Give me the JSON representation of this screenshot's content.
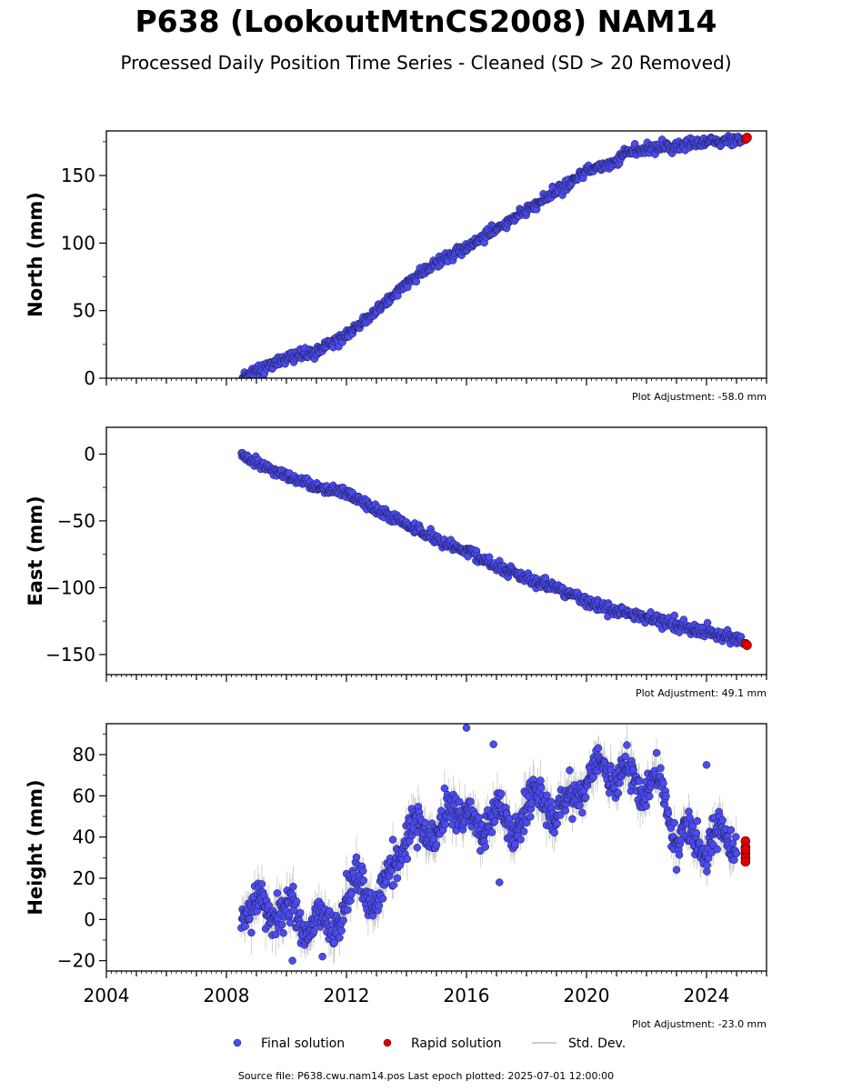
{
  "title": "P638 (LookoutMtnCS2008) NAM14",
  "subtitle": "Processed Daily Position Time Series - Cleaned (SD > 20 Removed)",
  "footer": "Source file: P638.cwu.nam14.pos  Last epoch plotted: 2025-07-01 12:00:00",
  "colors": {
    "final": "#4b4bf0",
    "rapid": "#e00000",
    "stddev": "#b0b0b0"
  },
  "chart_data": [
    {
      "type": "scatter",
      "ylabel": "North (mm)",
      "xlim": [
        2004,
        2026
      ],
      "ylim": [
        0,
        183
      ],
      "yticks": [
        0,
        50,
        100,
        150
      ],
      "ytick_labels": [
        "0",
        "50",
        "100",
        "150"
      ],
      "adjustment": "Plot Adjustment: -58.0 mm",
      "final": {
        "x": [
          2008.5,
          2009.0,
          2010.0,
          2011.0,
          2012.0,
          2013.0,
          2014.0,
          2015.0,
          2016.0,
          2017.0,
          2018.0,
          2019.0,
          2020.0,
          2021.0,
          2021.3,
          2022.0,
          2023.0,
          2024.0,
          2025.2
        ],
        "y": [
          0,
          6,
          14,
          20,
          32,
          50,
          70,
          85,
          97,
          111,
          124,
          138,
          153,
          160,
          167,
          170,
          172,
          175,
          177
        ]
      },
      "rapid": {
        "x": [
          2025.3,
          2025.35
        ],
        "y": [
          177,
          178
        ]
      }
    },
    {
      "type": "scatter",
      "ylabel": "East (mm)",
      "xlim": [
        2004,
        2026
      ],
      "ylim": [
        -165,
        20
      ],
      "yticks": [
        0,
        -50,
        -100,
        -150
      ],
      "ytick_labels": [
        "0",
        "−50",
        "−100",
        "−150"
      ],
      "adjustment": "Plot Adjustment: 49.1 mm",
      "final": {
        "x": [
          2008.5,
          2009.0,
          2010.0,
          2011.0,
          2012.0,
          2013.0,
          2014.0,
          2015.0,
          2016.0,
          2017.0,
          2018.0,
          2019.0,
          2020.0,
          2021.0,
          2022.0,
          2023.0,
          2024.0,
          2025.2
        ],
        "y": [
          0,
          -7,
          -16,
          -24,
          -30,
          -42,
          -53,
          -64,
          -73,
          -84,
          -93,
          -100,
          -110,
          -117,
          -122,
          -128,
          -133,
          -140
        ]
      },
      "rapid": {
        "x": [
          2025.3,
          2025.35
        ],
        "y": [
          -142,
          -143
        ]
      }
    },
    {
      "type": "scatter",
      "ylabel": "Height (mm)",
      "xlabel": "",
      "xlim": [
        2004,
        2026
      ],
      "ylim": [
        -25,
        95
      ],
      "yticks": [
        80,
        60,
        40,
        20,
        0,
        -20
      ],
      "ytick_labels": [
        "80",
        "60",
        "40",
        "20",
        "0",
        "−20"
      ],
      "xticks": [
        2004,
        2008,
        2012,
        2016,
        2020,
        2024
      ],
      "xtick_labels": [
        "2004",
        "2008",
        "2012",
        "2016",
        "2020",
        "2024"
      ],
      "adjustment": "Plot Adjustment: -23.0 mm",
      "final": {
        "x": [
          2008.5,
          2009.0,
          2009.5,
          2010.0,
          2010.5,
          2011.0,
          2011.5,
          2012.0,
          2012.5,
          2013.0,
          2013.5,
          2014.0,
          2014.5,
          2015.0,
          2015.5,
          2016.0,
          2016.5,
          2017.0,
          2017.5,
          2018.0,
          2018.5,
          2019.0,
          2019.5,
          2020.0,
          2020.5,
          2021.0,
          2021.5,
          2022.0,
          2022.5,
          2023.0,
          2023.5,
          2024.0,
          2024.5,
          2025.0
        ],
        "y": [
          5,
          10,
          0,
          8,
          -5,
          3,
          -8,
          8,
          18,
          5,
          28,
          40,
          45,
          40,
          55,
          50,
          42,
          55,
          40,
          55,
          62,
          50,
          60,
          65,
          75,
          68,
          72,
          62,
          68,
          35,
          45,
          30,
          45,
          35
        ],
        "outliers": [
          [
            2016.0,
            93
          ],
          [
            2016.9,
            85
          ],
          [
            2017.1,
            18
          ],
          [
            2011.2,
            -18
          ],
          [
            2010.2,
            -20
          ],
          [
            2024.0,
            75
          ]
        ]
      },
      "rapid": {
        "x": [
          2025.3,
          2025.3,
          2025.3,
          2025.3,
          2025.3,
          2025.3
        ],
        "y": [
          38,
          35,
          32,
          30,
          28,
          34
        ]
      }
    }
  ],
  "legend": {
    "final_label": "Final solution",
    "rapid_label": "Rapid solution",
    "std_label": "Std. Dev."
  }
}
